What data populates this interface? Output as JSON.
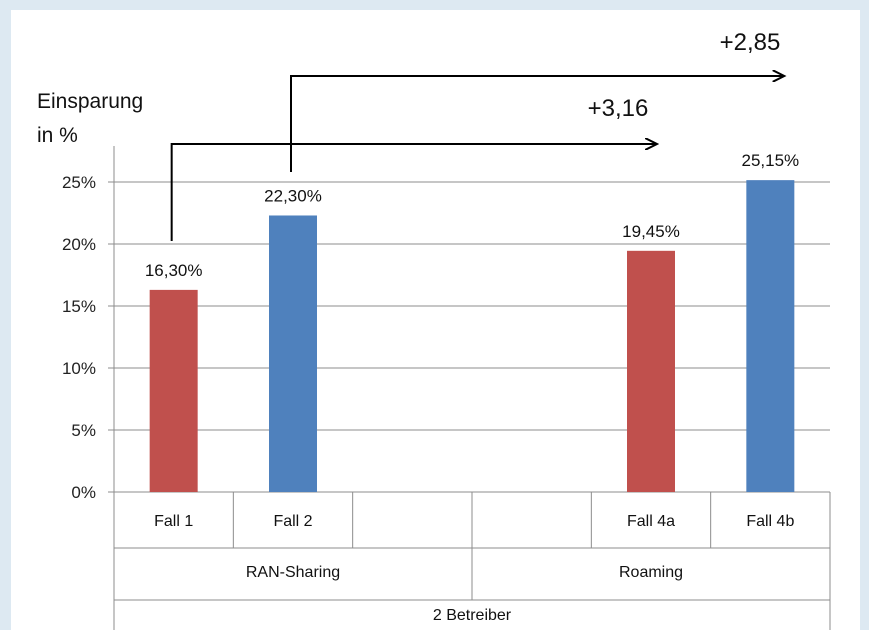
{
  "chart_data": {
    "type": "bar",
    "ylabel_line1": "Einsparung",
    "ylabel_line2": "in %",
    "ylim": [
      0,
      25
    ],
    "yticks": [
      "0%",
      "5%",
      "10%",
      "15%",
      "20%",
      "25%"
    ],
    "slots": [
      {
        "category": "Fall 1",
        "value": 16.3,
        "label": "16,30%",
        "color": "#c0504d"
      },
      {
        "category": "Fall 2",
        "value": 22.3,
        "label": "22,30%",
        "color": "#4f81bd"
      },
      {
        "category": "",
        "value": null,
        "label": "",
        "color": ""
      },
      {
        "category": "",
        "value": null,
        "label": "",
        "color": ""
      },
      {
        "category": "Fall 4a",
        "value": 19.45,
        "label": "19,45%",
        "color": "#c0504d"
      },
      {
        "category": "Fall 4b",
        "value": 25.15,
        "label": "25,15%",
        "color": "#4f81bd"
      }
    ],
    "groups_level2": [
      {
        "label": "RAN-Sharing",
        "span": [
          0,
          3
        ]
      },
      {
        "label": "Roaming",
        "span": [
          3,
          6
        ]
      }
    ],
    "groups_level3": [
      {
        "label": "2 Betreiber",
        "span": [
          0,
          6
        ]
      }
    ],
    "grid": true,
    "legend": "none",
    "annotations": [
      {
        "text": "+3,16",
        "from_slot": 0,
        "to_slot": 4
      },
      {
        "text": "+2,85",
        "from_slot": 1,
        "to_slot": 5
      }
    ]
  }
}
